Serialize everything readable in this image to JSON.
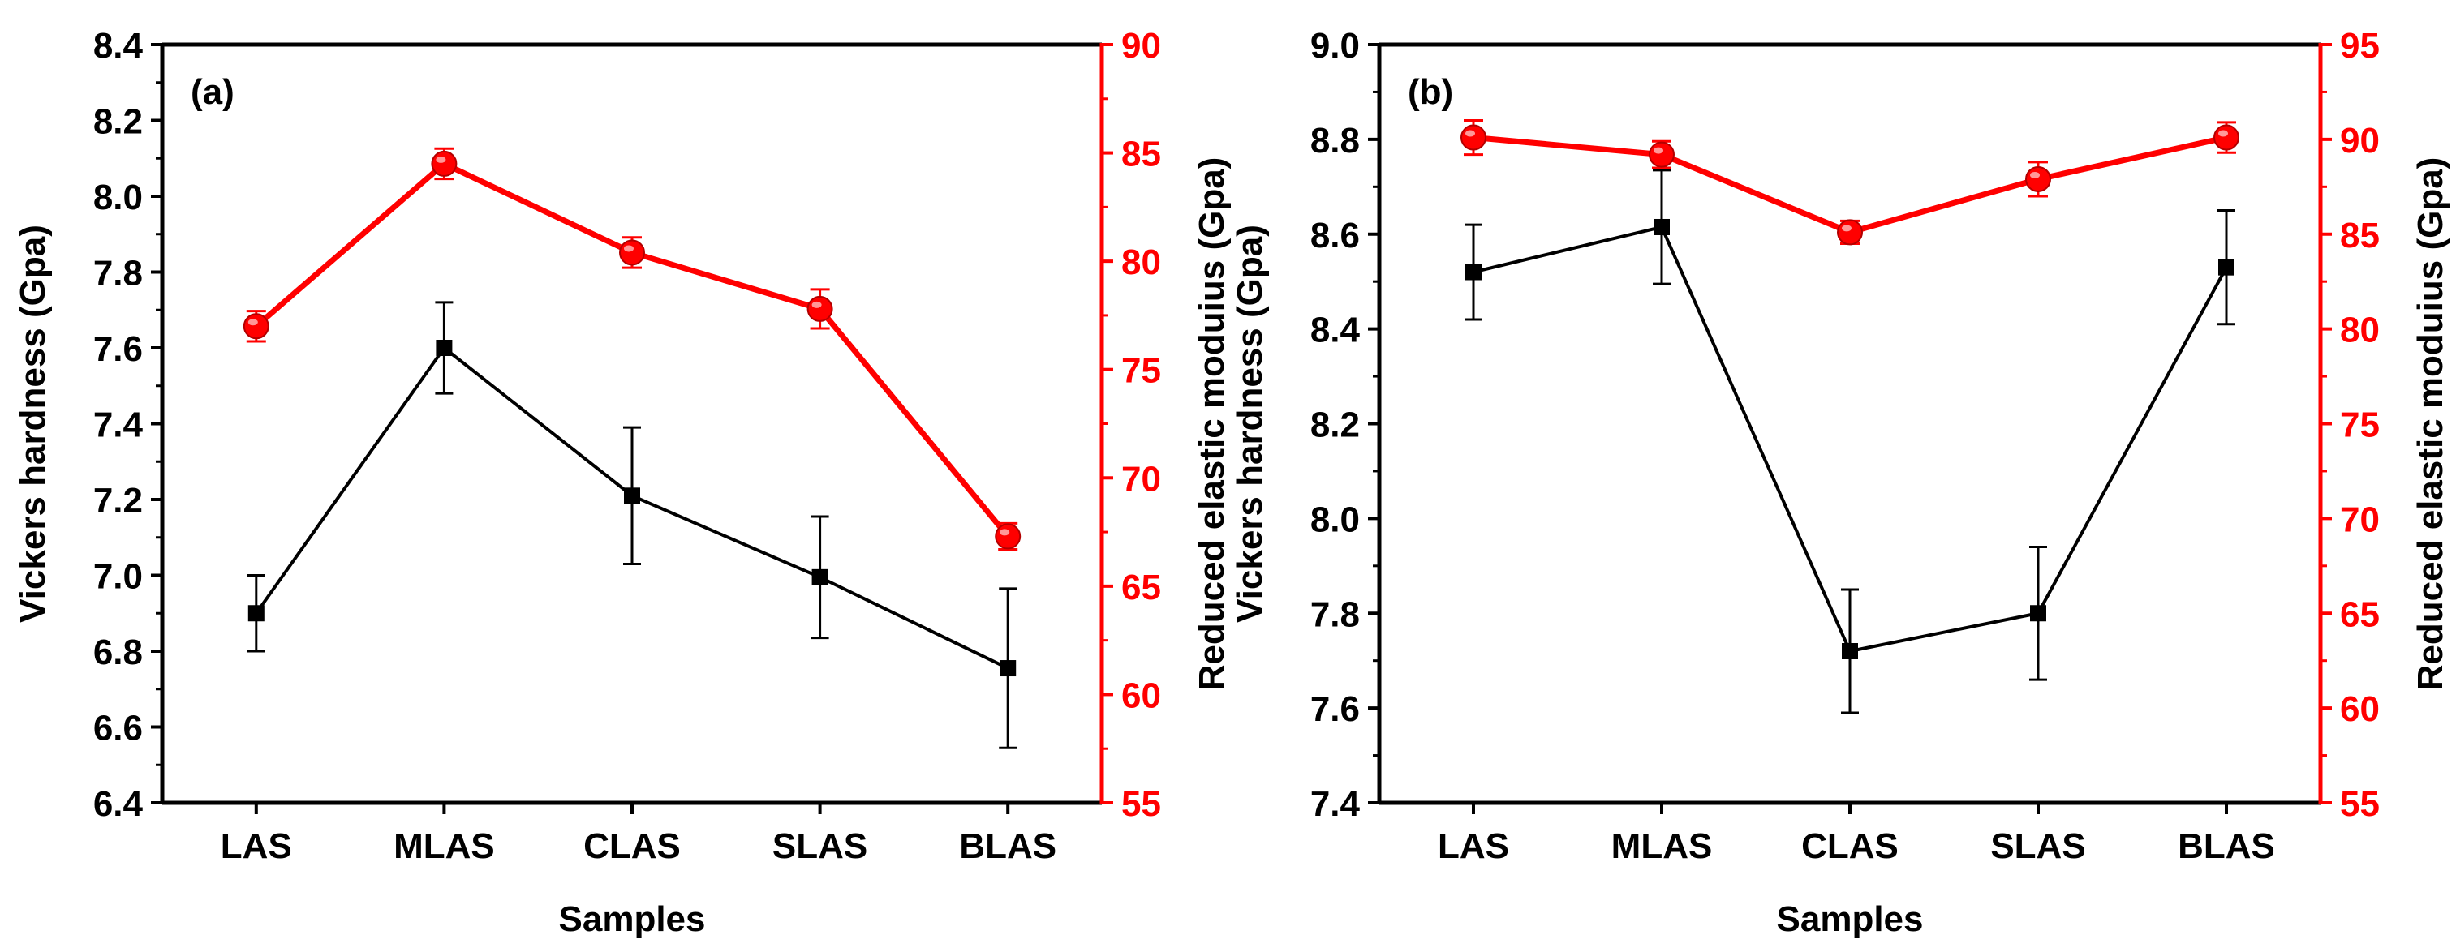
{
  "colors": {
    "left_series": "#000000",
    "right_series": "#ff0000",
    "axis": "#000000"
  },
  "chart_data": [
    {
      "type": "line",
      "panel_label": "(a)",
      "xlabel": "Samples",
      "ylabel": "Vickers hardness (Gpa)",
      "y2label": "Reduced elastic moduius (Gpa)",
      "categories": [
        "LAS",
        "MLAS",
        "CLAS",
        "SLAS",
        "BLAS"
      ],
      "ylim": [
        6.4,
        8.4
      ],
      "yticks": [
        "6.4",
        "6.6",
        "6.8",
        "7.0",
        "7.2",
        "7.4",
        "7.6",
        "7.8",
        "8.0",
        "8.2",
        "8.4"
      ],
      "y2lim": [
        55,
        90
      ],
      "y2ticks": [
        "55",
        "60",
        "65",
        "70",
        "75",
        "80",
        "85",
        "90"
      ],
      "series": [
        {
          "name": "Vickers hardness",
          "axis": "left",
          "marker": "square",
          "color": "#000000",
          "values": [
            6.9,
            7.6,
            7.21,
            6.995,
            6.755
          ],
          "errors": [
            0.1,
            0.12,
            0.18,
            0.16,
            0.21
          ]
        },
        {
          "name": "Reduced elastic modulus",
          "axis": "right",
          "marker": "circle",
          "color": "#ff0000",
          "values": [
            77.0,
            84.5,
            80.4,
            77.8,
            67.3
          ],
          "errors": [
            0.7,
            0.7,
            0.7,
            0.9,
            0.6
          ]
        }
      ]
    },
    {
      "type": "line",
      "panel_label": "(b)",
      "xlabel": "Samples",
      "ylabel": "Vickers hardness (Gpa)",
      "y2label": "Reduced elastic moduius (Gpa)",
      "categories": [
        "LAS",
        "MLAS",
        "CLAS",
        "SLAS",
        "BLAS"
      ],
      "ylim": [
        7.4,
        9.0
      ],
      "yticks": [
        "7.4",
        "7.6",
        "7.8",
        "8.0",
        "8.2",
        "8.4",
        "8.6",
        "8.8",
        "9.0"
      ],
      "y2lim": [
        55,
        95
      ],
      "y2ticks": [
        "55",
        "60",
        "65",
        "70",
        "75",
        "80",
        "85",
        "90",
        "95"
      ],
      "series": [
        {
          "name": "Vickers hardness",
          "axis": "left",
          "marker": "square",
          "color": "#000000",
          "values": [
            8.52,
            8.615,
            7.72,
            7.8,
            8.53
          ],
          "errors": [
            0.1,
            0.12,
            0.13,
            0.14,
            0.12
          ]
        },
        {
          "name": "Reduced elastic modulus",
          "axis": "right",
          "marker": "circle",
          "color": "#ff0000",
          "values": [
            90.1,
            89.2,
            85.1,
            87.9,
            90.1
          ],
          "errors": [
            0.9,
            0.7,
            0.6,
            0.9,
            0.8
          ]
        }
      ]
    }
  ]
}
